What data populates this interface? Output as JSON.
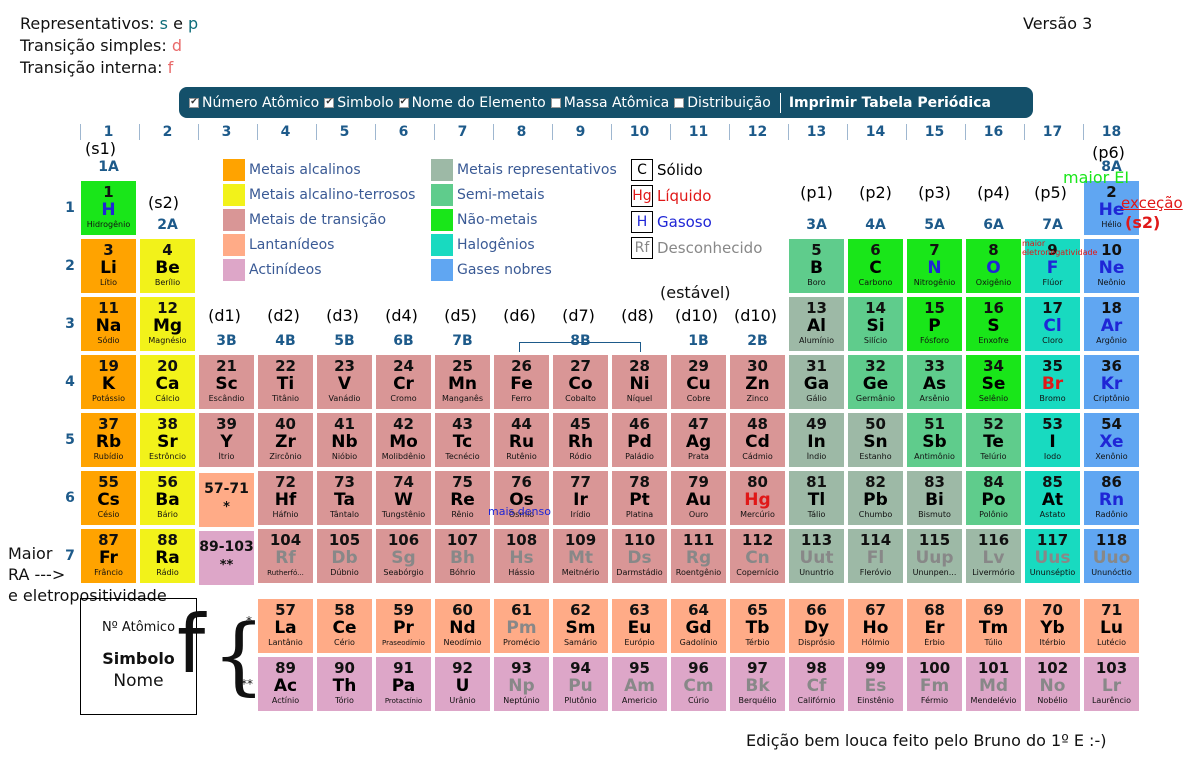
{
  "header": {
    "rep_label": "Representativos:",
    "rep_s": "s",
    "rep_e": "e",
    "rep_p": "p",
    "trans_label": "Transição simples:",
    "trans_d": "d",
    "int_label": "Transição interna:",
    "int_f": "f",
    "version": "Versão 3"
  },
  "toolbar": {
    "items": [
      {
        "label": "Número Atômico",
        "checked": true
      },
      {
        "label": "Simbolo",
        "checked": true
      },
      {
        "label": "Nome do Elemento",
        "checked": true
      },
      {
        "label": "Massa Atômica",
        "checked": false
      },
      {
        "label": "Distribuição",
        "checked": false
      }
    ],
    "print_label": "Imprimir Tabela Periódica"
  },
  "columns": [
    "1",
    "2",
    "3",
    "4",
    "5",
    "6",
    "7",
    "8",
    "9",
    "10",
    "11",
    "12",
    "13",
    "14",
    "15",
    "16",
    "17",
    "18"
  ],
  "periods": [
    "1",
    "2",
    "3",
    "4",
    "5",
    "6",
    "7"
  ],
  "groups": {
    "g1": "1A",
    "g2": "2A",
    "g3": "3B",
    "g4": "4B",
    "g5": "5B",
    "g6": "6B",
    "g7": "7B",
    "g8": "8B",
    "g11": "1B",
    "g12": "2B",
    "g13": "3A",
    "g14": "4A",
    "g15": "5A",
    "g16": "6A",
    "g17": "7A",
    "g18": "8A"
  },
  "sublevels": {
    "s1": "(s1)",
    "s2": "(s2)",
    "p1": "(p1)",
    "p2": "(p2)",
    "p3": "(p3)",
    "p4": "(p4)",
    "p5": "(p5)",
    "p6": "(p6)",
    "d1": "(d1)",
    "d2": "(d2)",
    "d3": "(d3)",
    "d4": "(d4)",
    "d5": "(d5)",
    "d6": "(d6)",
    "d7": "(d7)",
    "d8": "(d8)",
    "d9": "(d10)",
    "d10": "(d10)"
  },
  "legend": {
    "categories": [
      {
        "label": "Metais alcalinos",
        "color": "#ffa300"
      },
      {
        "label": "Metais alcalino-terrosos",
        "color": "#f2f21a"
      },
      {
        "label": "Metais de transição",
        "color": "#d99696"
      },
      {
        "label": "Lantanídeos",
        "color": "#ffab87"
      },
      {
        "label": "Actinídeos",
        "color": "#dda6c8"
      },
      {
        "label": "Metais representativos",
        "color": "#9db9a6"
      },
      {
        "label": "Semi-metais",
        "color": "#5fcc8c"
      },
      {
        "label": "Não-metais",
        "color": "#19e619"
      },
      {
        "label": "Halogênios",
        "color": "#18dac0"
      },
      {
        "label": "Gases nobres",
        "color": "#60a6f2"
      }
    ],
    "states": [
      {
        "symbol": "C",
        "label": "Sólido",
        "color": "#000000"
      },
      {
        "symbol": "Hg",
        "label": "Líquido",
        "color": "#e01818"
      },
      {
        "symbol": "H",
        "label": "Gasoso",
        "color": "#1f26d6"
      },
      {
        "symbol": "Rf",
        "label": "Desconhecido",
        "color": "#888888"
      }
    ]
  },
  "annotations": {
    "maior_ei": "maior EI",
    "excecao": "exceção",
    "s2": "(s2)",
    "maior_eletro": "maior eletronegatividade",
    "estavel": "(estável)",
    "mais_denso": "mais denso",
    "maior_ra_1": "Maior",
    "maior_ra_2": "RA  --->",
    "maior_ra_3": "e eletropositividade",
    "f_big": "f",
    "star1": "*",
    "star2": "**",
    "lan_range": "57-71",
    "act_range": "89-103",
    "footer": "Edição bem louca feito pelo Bruno do 1º E :-)"
  },
  "key_box": {
    "num": "Nº Atômico",
    "sym": "Simbolo",
    "name": "Nome"
  },
  "elements": [
    {
      "n": "1",
      "s": "H",
      "nm": "Hidrogênio",
      "c": "non",
      "st": "g",
      "col": 1,
      "row": 1
    },
    {
      "n": "2",
      "s": "He",
      "nm": "Hélio",
      "c": "nob",
      "st": "g",
      "col": 18,
      "row": 1
    },
    {
      "n": "3",
      "s": "Li",
      "nm": "Lítio",
      "c": "alk",
      "st": "s",
      "col": 1,
      "row": 2
    },
    {
      "n": "4",
      "s": "Be",
      "nm": "Berílio",
      "c": "ae",
      "st": "s",
      "col": 2,
      "row": 2
    },
    {
      "n": "5",
      "s": "B",
      "nm": "Boro",
      "c": "semi",
      "st": "s",
      "col": 13,
      "row": 2
    },
    {
      "n": "6",
      "s": "C",
      "nm": "Carbono",
      "c": "non",
      "st": "s",
      "col": 14,
      "row": 2
    },
    {
      "n": "7",
      "s": "N",
      "nm": "Nitrogênio",
      "c": "non",
      "st": "g",
      "col": 15,
      "row": 2
    },
    {
      "n": "8",
      "s": "O",
      "nm": "Oxigênio",
      "c": "non",
      "st": "g",
      "col": 16,
      "row": 2
    },
    {
      "n": "9",
      "s": "F",
      "nm": "Flúor",
      "c": "hal",
      "st": "g",
      "col": 17,
      "row": 2
    },
    {
      "n": "10",
      "s": "Ne",
      "nm": "Neônio",
      "c": "nob",
      "st": "g",
      "col": 18,
      "row": 2
    },
    {
      "n": "11",
      "s": "Na",
      "nm": "Sódio",
      "c": "alk",
      "st": "s",
      "col": 1,
      "row": 3
    },
    {
      "n": "12",
      "s": "Mg",
      "nm": "Magnésio",
      "c": "ae",
      "st": "s",
      "col": 2,
      "row": 3
    },
    {
      "n": "13",
      "s": "Al",
      "nm": "Alumínio",
      "c": "rep",
      "st": "s",
      "col": 13,
      "row": 3
    },
    {
      "n": "14",
      "s": "Si",
      "nm": "Silício",
      "c": "semi",
      "st": "s",
      "col": 14,
      "row": 3
    },
    {
      "n": "15",
      "s": "P",
      "nm": "Fósforo",
      "c": "non",
      "st": "s",
      "col": 15,
      "row": 3
    },
    {
      "n": "16",
      "s": "S",
      "nm": "Enxofre",
      "c": "non",
      "st": "s",
      "col": 16,
      "row": 3
    },
    {
      "n": "17",
      "s": "Cl",
      "nm": "Cloro",
      "c": "hal",
      "st": "g",
      "col": 17,
      "row": 3
    },
    {
      "n": "18",
      "s": "Ar",
      "nm": "Argônio",
      "c": "nob",
      "st": "g",
      "col": 18,
      "row": 3
    },
    {
      "n": "19",
      "s": "K",
      "nm": "Potássio",
      "c": "alk",
      "st": "s",
      "col": 1,
      "row": 4
    },
    {
      "n": "20",
      "s": "Ca",
      "nm": "Cálcio",
      "c": "ae",
      "st": "s",
      "col": 2,
      "row": 4
    },
    {
      "n": "21",
      "s": "Sc",
      "nm": "Escândio",
      "c": "tr",
      "st": "s",
      "col": 3,
      "row": 4
    },
    {
      "n": "22",
      "s": "Ti",
      "nm": "Titânio",
      "c": "tr",
      "st": "s",
      "col": 4,
      "row": 4
    },
    {
      "n": "23",
      "s": "V",
      "nm": "Vanádio",
      "c": "tr",
      "st": "s",
      "col": 5,
      "row": 4
    },
    {
      "n": "24",
      "s": "Cr",
      "nm": "Cromo",
      "c": "tr",
      "st": "s",
      "col": 6,
      "row": 4
    },
    {
      "n": "25",
      "s": "Mn",
      "nm": "Manganês",
      "c": "tr",
      "st": "s",
      "col": 7,
      "row": 4
    },
    {
      "n": "26",
      "s": "Fe",
      "nm": "Ferro",
      "c": "tr",
      "st": "s",
      "col": 8,
      "row": 4
    },
    {
      "n": "27",
      "s": "Co",
      "nm": "Cobalto",
      "c": "tr",
      "st": "s",
      "col": 9,
      "row": 4
    },
    {
      "n": "28",
      "s": "Ni",
      "nm": "Níquel",
      "c": "tr",
      "st": "s",
      "col": 10,
      "row": 4
    },
    {
      "n": "29",
      "s": "Cu",
      "nm": "Cobre",
      "c": "tr",
      "st": "s",
      "col": 11,
      "row": 4
    },
    {
      "n": "30",
      "s": "Zn",
      "nm": "Zinco",
      "c": "tr",
      "st": "s",
      "col": 12,
      "row": 4
    },
    {
      "n": "31",
      "s": "Ga",
      "nm": "Gálio",
      "c": "rep",
      "st": "s",
      "col": 13,
      "row": 4
    },
    {
      "n": "32",
      "s": "Ge",
      "nm": "Germânio",
      "c": "semi",
      "st": "s",
      "col": 14,
      "row": 4
    },
    {
      "n": "33",
      "s": "As",
      "nm": "Arsênio",
      "c": "semi",
      "st": "s",
      "col": 15,
      "row": 4
    },
    {
      "n": "34",
      "s": "Se",
      "nm": "Selênio",
      "c": "non",
      "st": "s",
      "col": 16,
      "row": 4
    },
    {
      "n": "35",
      "s": "Br",
      "nm": "Bromo",
      "c": "hal",
      "st": "l",
      "col": 17,
      "row": 4
    },
    {
      "n": "36",
      "s": "Kr",
      "nm": "Criptônio",
      "c": "nob",
      "st": "g",
      "col": 18,
      "row": 4
    },
    {
      "n": "37",
      "s": "Rb",
      "nm": "Rubídio",
      "c": "alk",
      "st": "s",
      "col": 1,
      "row": 5
    },
    {
      "n": "38",
      "s": "Sr",
      "nm": "Estrôncio",
      "c": "ae",
      "st": "s",
      "col": 2,
      "row": 5
    },
    {
      "n": "39",
      "s": "Y",
      "nm": "Ítrio",
      "c": "tr",
      "st": "s",
      "col": 3,
      "row": 5
    },
    {
      "n": "40",
      "s": "Zr",
      "nm": "Zircônio",
      "c": "tr",
      "st": "s",
      "col": 4,
      "row": 5
    },
    {
      "n": "41",
      "s": "Nb",
      "nm": "Nióbio",
      "c": "tr",
      "st": "s",
      "col": 5,
      "row": 5
    },
    {
      "n": "42",
      "s": "Mo",
      "nm": "Molibdênio",
      "c": "tr",
      "st": "s",
      "col": 6,
      "row": 5
    },
    {
      "n": "43",
      "s": "Tc",
      "nm": "Tecnécio",
      "c": "tr",
      "st": "s",
      "col": 7,
      "row": 5
    },
    {
      "n": "44",
      "s": "Ru",
      "nm": "Rutênio",
      "c": "tr",
      "st": "s",
      "col": 8,
      "row": 5
    },
    {
      "n": "45",
      "s": "Rh",
      "nm": "Ródio",
      "c": "tr",
      "st": "s",
      "col": 9,
      "row": 5
    },
    {
      "n": "46",
      "s": "Pd",
      "nm": "Paládio",
      "c": "tr",
      "st": "s",
      "col": 10,
      "row": 5
    },
    {
      "n": "47",
      "s": "Ag",
      "nm": "Prata",
      "c": "tr",
      "st": "s",
      "col": 11,
      "row": 5
    },
    {
      "n": "48",
      "s": "Cd",
      "nm": "Cádmio",
      "c": "tr",
      "st": "s",
      "col": 12,
      "row": 5
    },
    {
      "n": "49",
      "s": "In",
      "nm": "Índio",
      "c": "rep",
      "st": "s",
      "col": 13,
      "row": 5
    },
    {
      "n": "50",
      "s": "Sn",
      "nm": "Estanho",
      "c": "rep",
      "st": "s",
      "col": 14,
      "row": 5
    },
    {
      "n": "51",
      "s": "Sb",
      "nm": "Antimônio",
      "c": "semi",
      "st": "s",
      "col": 15,
      "row": 5
    },
    {
      "n": "52",
      "s": "Te",
      "nm": "Telúrio",
      "c": "semi",
      "st": "s",
      "col": 16,
      "row": 5
    },
    {
      "n": "53",
      "s": "I",
      "nm": "Iodo",
      "c": "hal",
      "st": "s",
      "col": 17,
      "row": 5
    },
    {
      "n": "54",
      "s": "Xe",
      "nm": "Xenônio",
      "c": "nob",
      "st": "g",
      "col": 18,
      "row": 5
    },
    {
      "n": "55",
      "s": "Cs",
      "nm": "Césio",
      "c": "alk",
      "st": "s",
      "col": 1,
      "row": 6
    },
    {
      "n": "56",
      "s": "Ba",
      "nm": "Bário",
      "c": "ae",
      "st": "s",
      "col": 2,
      "row": 6
    },
    {
      "n": "72",
      "s": "Hf",
      "nm": "Háfnio",
      "c": "tr",
      "st": "s",
      "col": 4,
      "row": 6
    },
    {
      "n": "73",
      "s": "Ta",
      "nm": "Tântalo",
      "c": "tr",
      "st": "s",
      "col": 5,
      "row": 6
    },
    {
      "n": "74",
      "s": "W",
      "nm": "Tungstênio",
      "c": "tr",
      "st": "s",
      "col": 6,
      "row": 6
    },
    {
      "n": "75",
      "s": "Re",
      "nm": "Rênio",
      "c": "tr",
      "st": "s",
      "col": 7,
      "row": 6
    },
    {
      "n": "76",
      "s": "Os",
      "nm": "Ósmio",
      "c": "tr",
      "st": "s",
      "col": 8,
      "row": 6
    },
    {
      "n": "77",
      "s": "Ir",
      "nm": "Irídio",
      "c": "tr",
      "st": "s",
      "col": 9,
      "row": 6
    },
    {
      "n": "78",
      "s": "Pt",
      "nm": "Platina",
      "c": "tr",
      "st": "s",
      "col": 10,
      "row": 6
    },
    {
      "n": "79",
      "s": "Au",
      "nm": "Ouro",
      "c": "tr",
      "st": "s",
      "col": 11,
      "row": 6
    },
    {
      "n": "80",
      "s": "Hg",
      "nm": "Mercúrio",
      "c": "tr",
      "st": "l",
      "col": 12,
      "row": 6
    },
    {
      "n": "81",
      "s": "Tl",
      "nm": "Tálio",
      "c": "rep",
      "st": "s",
      "col": 13,
      "row": 6
    },
    {
      "n": "82",
      "s": "Pb",
      "nm": "Chumbo",
      "c": "rep",
      "st": "s",
      "col": 14,
      "row": 6
    },
    {
      "n": "83",
      "s": "Bi",
      "nm": "Bismuto",
      "c": "rep",
      "st": "s",
      "col": 15,
      "row": 6
    },
    {
      "n": "84",
      "s": "Po",
      "nm": "Polônio",
      "c": "semi",
      "st": "s",
      "col": 16,
      "row": 6
    },
    {
      "n": "85",
      "s": "At",
      "nm": "Astato",
      "c": "hal",
      "st": "s",
      "col": 17,
      "row": 6
    },
    {
      "n": "86",
      "s": "Rn",
      "nm": "Radônio",
      "c": "nob",
      "st": "g",
      "col": 18,
      "row": 6
    },
    {
      "n": "87",
      "s": "Fr",
      "nm": "Frâncio",
      "c": "alk",
      "st": "s",
      "col": 1,
      "row": 7
    },
    {
      "n": "88",
      "s": "Ra",
      "nm": "Rádio",
      "c": "ae",
      "st": "s",
      "col": 2,
      "row": 7
    },
    {
      "n": "104",
      "s": "Rf",
      "nm": "Rutherfó...",
      "c": "tr",
      "st": "u",
      "col": 4,
      "row": 7
    },
    {
      "n": "105",
      "s": "Db",
      "nm": "Dúbnio",
      "c": "tr",
      "st": "u",
      "col": 5,
      "row": 7
    },
    {
      "n": "106",
      "s": "Sg",
      "nm": "Seabórgio",
      "c": "tr",
      "st": "u",
      "col": 6,
      "row": 7
    },
    {
      "n": "107",
      "s": "Bh",
      "nm": "Bóhrio",
      "c": "tr",
      "st": "u",
      "col": 7,
      "row": 7
    },
    {
      "n": "108",
      "s": "Hs",
      "nm": "Hássio",
      "c": "tr",
      "st": "u",
      "col": 8,
      "row": 7
    },
    {
      "n": "109",
      "s": "Mt",
      "nm": "Meitnério",
      "c": "tr",
      "st": "u",
      "col": 9,
      "row": 7
    },
    {
      "n": "110",
      "s": "Ds",
      "nm": "Darmstádio",
      "c": "tr",
      "st": "u",
      "col": 10,
      "row": 7
    },
    {
      "n": "111",
      "s": "Rg",
      "nm": "Roentgênio",
      "c": "tr",
      "st": "u",
      "col": 11,
      "row": 7
    },
    {
      "n": "112",
      "s": "Cn",
      "nm": "Copernício",
      "c": "tr",
      "st": "u",
      "col": 12,
      "row": 7
    },
    {
      "n": "113",
      "s": "Uut",
      "nm": "Ununtrio",
      "c": "rep",
      "st": "u",
      "col": 13,
      "row": 7
    },
    {
      "n": "114",
      "s": "Fl",
      "nm": "Fleróvio",
      "c": "rep",
      "st": "u",
      "col": 14,
      "row": 7
    },
    {
      "n": "115",
      "s": "Uup",
      "nm": "Ununpen...",
      "c": "rep",
      "st": "u",
      "col": 15,
      "row": 7
    },
    {
      "n": "116",
      "s": "Lv",
      "nm": "Livermório",
      "c": "rep",
      "st": "u",
      "col": 16,
      "row": 7
    },
    {
      "n": "117",
      "s": "Uus",
      "nm": "Ununséptio",
      "c": "hal",
      "st": "u",
      "col": 17,
      "row": 7
    },
    {
      "n": "118",
      "s": "Uuo",
      "nm": "Ununóctio",
      "c": "nob",
      "st": "u",
      "col": 18,
      "row": 7
    },
    {
      "n": "57",
      "s": "La",
      "nm": "Lantânio",
      "c": "lan",
      "st": "s",
      "col": 4,
      "row": 8
    },
    {
      "n": "58",
      "s": "Ce",
      "nm": "Cério",
      "c": "lan",
      "st": "s",
      "col": 5,
      "row": 8
    },
    {
      "n": "59",
      "s": "Pr",
      "nm": "Praseodímio",
      "c": "lan",
      "st": "s",
      "col": 6,
      "row": 8
    },
    {
      "n": "60",
      "s": "Nd",
      "nm": "Neodímio",
      "c": "lan",
      "st": "s",
      "col": 7,
      "row": 8
    },
    {
      "n": "61",
      "s": "Pm",
      "nm": "Promécio",
      "c": "lan",
      "st": "u",
      "col": 8,
      "row": 8
    },
    {
      "n": "62",
      "s": "Sm",
      "nm": "Samário",
      "c": "lan",
      "st": "s",
      "col": 9,
      "row": 8
    },
    {
      "n": "63",
      "s": "Eu",
      "nm": "Európio",
      "c": "lan",
      "st": "s",
      "col": 10,
      "row": 8
    },
    {
      "n": "64",
      "s": "Gd",
      "nm": "Gadolínio",
      "c": "lan",
      "st": "s",
      "col": 11,
      "row": 8
    },
    {
      "n": "65",
      "s": "Tb",
      "nm": "Térbio",
      "c": "lan",
      "st": "s",
      "col": 12,
      "row": 8
    },
    {
      "n": "66",
      "s": "Dy",
      "nm": "Disprósio",
      "c": "lan",
      "st": "s",
      "col": 13,
      "row": 8
    },
    {
      "n": "67",
      "s": "Ho",
      "nm": "Hólmio",
      "c": "lan",
      "st": "s",
      "col": 14,
      "row": 8
    },
    {
      "n": "68",
      "s": "Er",
      "nm": "Érbio",
      "c": "lan",
      "st": "s",
      "col": 15,
      "row": 8
    },
    {
      "n": "69",
      "s": "Tm",
      "nm": "Túlio",
      "c": "lan",
      "st": "s",
      "col": 16,
      "row": 8
    },
    {
      "n": "70",
      "s": "Yb",
      "nm": "Itérbio",
      "c": "lan",
      "st": "s",
      "col": 17,
      "row": 8
    },
    {
      "n": "71",
      "s": "Lu",
      "nm": "Lutécio",
      "c": "lan",
      "st": "s",
      "col": 18,
      "row": 8
    },
    {
      "n": "89",
      "s": "Ac",
      "nm": "Actínio",
      "c": "act",
      "st": "s",
      "col": 4,
      "row": 9
    },
    {
      "n": "90",
      "s": "Th",
      "nm": "Tório",
      "c": "act",
      "st": "s",
      "col": 5,
      "row": 9
    },
    {
      "n": "91",
      "s": "Pa",
      "nm": "Protactínio",
      "c": "act",
      "st": "s",
      "col": 6,
      "row": 9
    },
    {
      "n": "92",
      "s": "U",
      "nm": "Urânio",
      "c": "act",
      "st": "s",
      "col": 7,
      "row": 9
    },
    {
      "n": "93",
      "s": "Np",
      "nm": "Neptúnio",
      "c": "act",
      "st": "u",
      "col": 8,
      "row": 9
    },
    {
      "n": "94",
      "s": "Pu",
      "nm": "Plutônio",
      "c": "act",
      "st": "u",
      "col": 9,
      "row": 9
    },
    {
      "n": "95",
      "s": "Am",
      "nm": "Americio",
      "c": "act",
      "st": "u",
      "col": 10,
      "row": 9
    },
    {
      "n": "96",
      "s": "Cm",
      "nm": "Cúrio",
      "c": "act",
      "st": "u",
      "col": 11,
      "row": 9
    },
    {
      "n": "97",
      "s": "Bk",
      "nm": "Berquélio",
      "c": "act",
      "st": "u",
      "col": 12,
      "row": 9
    },
    {
      "n": "98",
      "s": "Cf",
      "nm": "Califórnio",
      "c": "act",
      "st": "u",
      "col": 13,
      "row": 9
    },
    {
      "n": "99",
      "s": "Es",
      "nm": "Einstênio",
      "c": "act",
      "st": "u",
      "col": 14,
      "row": 9
    },
    {
      "n": "100",
      "s": "Fm",
      "nm": "Férmio",
      "c": "act",
      "st": "u",
      "col": 15,
      "row": 9
    },
    {
      "n": "101",
      "s": "Md",
      "nm": "Mendelévio",
      "c": "act",
      "st": "u",
      "col": 16,
      "row": 9
    },
    {
      "n": "102",
      "s": "No",
      "nm": "Nobélio",
      "c": "act",
      "st": "u",
      "col": 17,
      "row": 9
    },
    {
      "n": "103",
      "s": "Lr",
      "nm": "Laurêncio",
      "c": "act",
      "st": "u",
      "col": 18,
      "row": 9
    }
  ]
}
